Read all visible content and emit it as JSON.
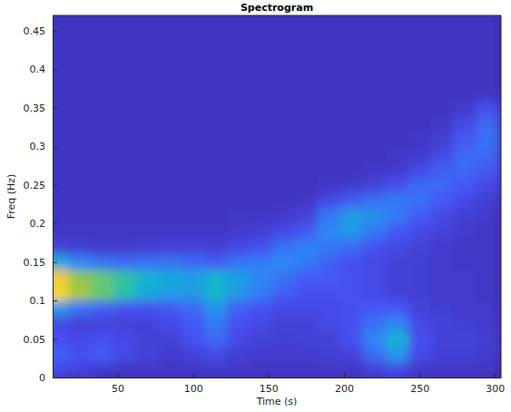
{
  "chart_data": {
    "type": "heatmap",
    "title": "Spectrogram",
    "x_label": "Time (s)",
    "y_label": "Freq (Hz)",
    "xlim": [
      7,
      304
    ],
    "ylim": [
      0,
      0.47
    ],
    "xticks": [
      50,
      100,
      150,
      200,
      250,
      300
    ],
    "yticks": [
      0,
      0.05,
      0.1,
      0.15,
      0.2,
      0.25,
      0.3,
      0.35,
      0.4,
      0.45
    ],
    "zlim": [
      0,
      1
    ],
    "x": [
      10,
      25,
      40,
      55,
      70,
      85,
      100,
      115,
      130,
      145,
      160,
      175,
      190,
      205,
      220,
      235,
      250,
      265,
      280,
      295
    ],
    "y": [
      0.01,
      0.03,
      0.05,
      0.07,
      0.09,
      0.11,
      0.13,
      0.15,
      0.17,
      0.19,
      0.21,
      0.23,
      0.25,
      0.27,
      0.29,
      0.31,
      0.33,
      0.35,
      0.37,
      0.39,
      0.41,
      0.43,
      0.45,
      0.47
    ],
    "z": [
      [
        0.1,
        0.08,
        0.06,
        0.05,
        0.05,
        0.05,
        0.05,
        0.06,
        0.05,
        0.05,
        0.05,
        0.05,
        0.05,
        0.05,
        0.08,
        0.1,
        0.06,
        0.05,
        0.05,
        0.05
      ],
      [
        0.16,
        0.12,
        0.14,
        0.1,
        0.08,
        0.06,
        0.08,
        0.1,
        0.07,
        0.06,
        0.06,
        0.06,
        0.07,
        0.08,
        0.18,
        0.3,
        0.1,
        0.07,
        0.07,
        0.06
      ],
      [
        0.12,
        0.1,
        0.12,
        0.1,
        0.08,
        0.08,
        0.12,
        0.18,
        0.1,
        0.08,
        0.07,
        0.08,
        0.08,
        0.12,
        0.25,
        0.38,
        0.12,
        0.08,
        0.08,
        0.07
      ],
      [
        0.1,
        0.08,
        0.08,
        0.08,
        0.08,
        0.1,
        0.14,
        0.22,
        0.12,
        0.1,
        0.08,
        0.08,
        0.1,
        0.12,
        0.2,
        0.25,
        0.1,
        0.08,
        0.07,
        0.06
      ],
      [
        0.3,
        0.2,
        0.15,
        0.12,
        0.12,
        0.14,
        0.18,
        0.28,
        0.16,
        0.12,
        0.1,
        0.1,
        0.1,
        0.12,
        0.14,
        0.14,
        0.08,
        0.07,
        0.06,
        0.06
      ],
      [
        0.85,
        0.62,
        0.55,
        0.45,
        0.35,
        0.32,
        0.3,
        0.4,
        0.3,
        0.22,
        0.15,
        0.12,
        0.12,
        0.12,
        0.1,
        0.08,
        0.07,
        0.06,
        0.06,
        0.05
      ],
      [
        0.8,
        0.6,
        0.55,
        0.48,
        0.38,
        0.35,
        0.32,
        0.38,
        0.32,
        0.25,
        0.2,
        0.15,
        0.14,
        0.12,
        0.1,
        0.08,
        0.07,
        0.06,
        0.06,
        0.05
      ],
      [
        0.35,
        0.25,
        0.2,
        0.18,
        0.2,
        0.2,
        0.18,
        0.15,
        0.2,
        0.22,
        0.25,
        0.22,
        0.16,
        0.12,
        0.1,
        0.08,
        0.07,
        0.06,
        0.05,
        0.05
      ],
      [
        0.08,
        0.07,
        0.06,
        0.06,
        0.07,
        0.08,
        0.08,
        0.07,
        0.1,
        0.12,
        0.2,
        0.24,
        0.22,
        0.18,
        0.12,
        0.1,
        0.08,
        0.06,
        0.05,
        0.05
      ],
      [
        0.05,
        0.05,
        0.05,
        0.05,
        0.05,
        0.05,
        0.05,
        0.05,
        0.06,
        0.07,
        0.1,
        0.14,
        0.25,
        0.3,
        0.22,
        0.14,
        0.1,
        0.08,
        0.06,
        0.05
      ],
      [
        0.04,
        0.04,
        0.04,
        0.04,
        0.04,
        0.04,
        0.04,
        0.04,
        0.05,
        0.05,
        0.06,
        0.08,
        0.22,
        0.32,
        0.28,
        0.22,
        0.14,
        0.1,
        0.07,
        0.06
      ],
      [
        0.04,
        0.04,
        0.04,
        0.04,
        0.04,
        0.04,
        0.04,
        0.04,
        0.04,
        0.04,
        0.04,
        0.05,
        0.1,
        0.15,
        0.2,
        0.22,
        0.2,
        0.14,
        0.1,
        0.07
      ],
      [
        0.04,
        0.04,
        0.04,
        0.04,
        0.04,
        0.04,
        0.04,
        0.04,
        0.04,
        0.04,
        0.04,
        0.04,
        0.05,
        0.06,
        0.08,
        0.12,
        0.18,
        0.18,
        0.14,
        0.1
      ],
      [
        0.04,
        0.04,
        0.04,
        0.04,
        0.04,
        0.04,
        0.04,
        0.04,
        0.04,
        0.04,
        0.04,
        0.04,
        0.04,
        0.04,
        0.05,
        0.06,
        0.1,
        0.16,
        0.18,
        0.14
      ],
      [
        0.04,
        0.04,
        0.04,
        0.04,
        0.04,
        0.04,
        0.04,
        0.04,
        0.04,
        0.04,
        0.04,
        0.04,
        0.04,
        0.04,
        0.04,
        0.05,
        0.06,
        0.1,
        0.18,
        0.18
      ],
      [
        0.04,
        0.04,
        0.04,
        0.04,
        0.04,
        0.04,
        0.04,
        0.04,
        0.04,
        0.04,
        0.04,
        0.04,
        0.04,
        0.04,
        0.04,
        0.04,
        0.05,
        0.07,
        0.14,
        0.2
      ],
      [
        0.04,
        0.04,
        0.04,
        0.04,
        0.04,
        0.04,
        0.04,
        0.04,
        0.04,
        0.04,
        0.04,
        0.04,
        0.04,
        0.04,
        0.04,
        0.04,
        0.04,
        0.05,
        0.1,
        0.18
      ],
      [
        0.04,
        0.04,
        0.04,
        0.04,
        0.04,
        0.04,
        0.04,
        0.04,
        0.04,
        0.04,
        0.04,
        0.04,
        0.04,
        0.04,
        0.04,
        0.04,
        0.04,
        0.04,
        0.06,
        0.12
      ],
      [
        0.04,
        0.04,
        0.04,
        0.04,
        0.04,
        0.04,
        0.04,
        0.04,
        0.04,
        0.04,
        0.04,
        0.04,
        0.04,
        0.04,
        0.04,
        0.04,
        0.04,
        0.04,
        0.04,
        0.04
      ],
      [
        0.04,
        0.04,
        0.04,
        0.04,
        0.04,
        0.04,
        0.04,
        0.04,
        0.04,
        0.04,
        0.04,
        0.04,
        0.04,
        0.04,
        0.04,
        0.04,
        0.04,
        0.04,
        0.04,
        0.04
      ],
      [
        0.04,
        0.04,
        0.04,
        0.04,
        0.04,
        0.04,
        0.04,
        0.04,
        0.04,
        0.04,
        0.04,
        0.04,
        0.04,
        0.04,
        0.04,
        0.04,
        0.04,
        0.04,
        0.04,
        0.04
      ],
      [
        0.04,
        0.04,
        0.04,
        0.04,
        0.04,
        0.04,
        0.04,
        0.04,
        0.04,
        0.04,
        0.04,
        0.04,
        0.04,
        0.04,
        0.04,
        0.04,
        0.04,
        0.04,
        0.04,
        0.04
      ],
      [
        0.04,
        0.04,
        0.04,
        0.04,
        0.04,
        0.04,
        0.04,
        0.04,
        0.04,
        0.04,
        0.04,
        0.04,
        0.04,
        0.04,
        0.04,
        0.04,
        0.04,
        0.04,
        0.04,
        0.04
      ],
      [
        0.04,
        0.04,
        0.04,
        0.04,
        0.04,
        0.04,
        0.04,
        0.04,
        0.04,
        0.04,
        0.04,
        0.04,
        0.04,
        0.04,
        0.04,
        0.04,
        0.04,
        0.04,
        0.04,
        0.04
      ]
    ]
  }
}
